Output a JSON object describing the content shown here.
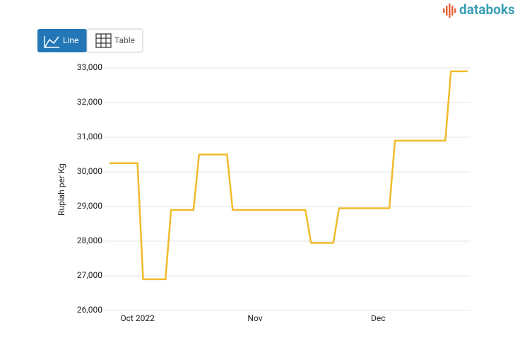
{
  "ui": {
    "logo": "databoks",
    "buttons": [
      "Line",
      "Table"
    ]
  },
  "chart_data": {
    "type": "line",
    "y_label": "Rupiah per Kg",
    "categories": [
      null,
      null,
      null,
      null,
      null,
      "Oct 2022",
      null,
      null,
      null,
      null,
      null,
      null,
      null,
      null,
      null,
      null,
      null,
      null,
      null,
      null,
      null,
      null,
      null,
      null,
      null,
      null,
      "Nov",
      null,
      null,
      null,
      null,
      null,
      null,
      null,
      null,
      null,
      null,
      null,
      null,
      null,
      null,
      null,
      null,
      null,
      null,
      null,
      null,
      null,
      "Dec",
      null,
      null,
      null,
      null,
      null,
      null,
      null,
      null,
      null,
      null,
      null,
      null,
      null,
      null,
      null,
      null
    ],
    "series": [
      {
        "color": "#f0bb2b",
        "values": [
          30250,
          30250,
          30250,
          30250,
          30250,
          30250,
          26900,
          26900,
          26900,
          26900,
          26900,
          28900,
          28900,
          28900,
          28900,
          28900,
          30500,
          30500,
          30500,
          30500,
          30500,
          30500,
          28900,
          28900,
          28900,
          28900,
          28900,
          28900,
          28900,
          28900,
          28900,
          28900,
          28900,
          28900,
          28900,
          28900,
          27950,
          27950,
          27950,
          27950,
          27950,
          28950,
          28950,
          28950,
          28950,
          28950,
          28950,
          28950,
          28950,
          28950,
          28950,
          30900,
          30900,
          30900,
          30900,
          30900,
          30900,
          30900,
          30900,
          30900,
          30900,
          32900,
          32900,
          32900,
          32900
        ]
      }
    ],
    "ylim": [
      26000,
      33000
    ],
    "yticks": [
      {
        "value": 26000,
        "label": "26,000"
      },
      {
        "value": 27000,
        "label": "27,000"
      },
      {
        "value": 28000,
        "label": "28,000"
      },
      {
        "value": 29000,
        "label": "29,000"
      },
      {
        "value": 30000,
        "label": "30,000"
      },
      {
        "value": 31000,
        "label": "31,000"
      },
      {
        "value": 32000,
        "label": "32,000"
      },
      {
        "value": 33000,
        "label": "33,000"
      }
    ],
    "grid": true
  }
}
